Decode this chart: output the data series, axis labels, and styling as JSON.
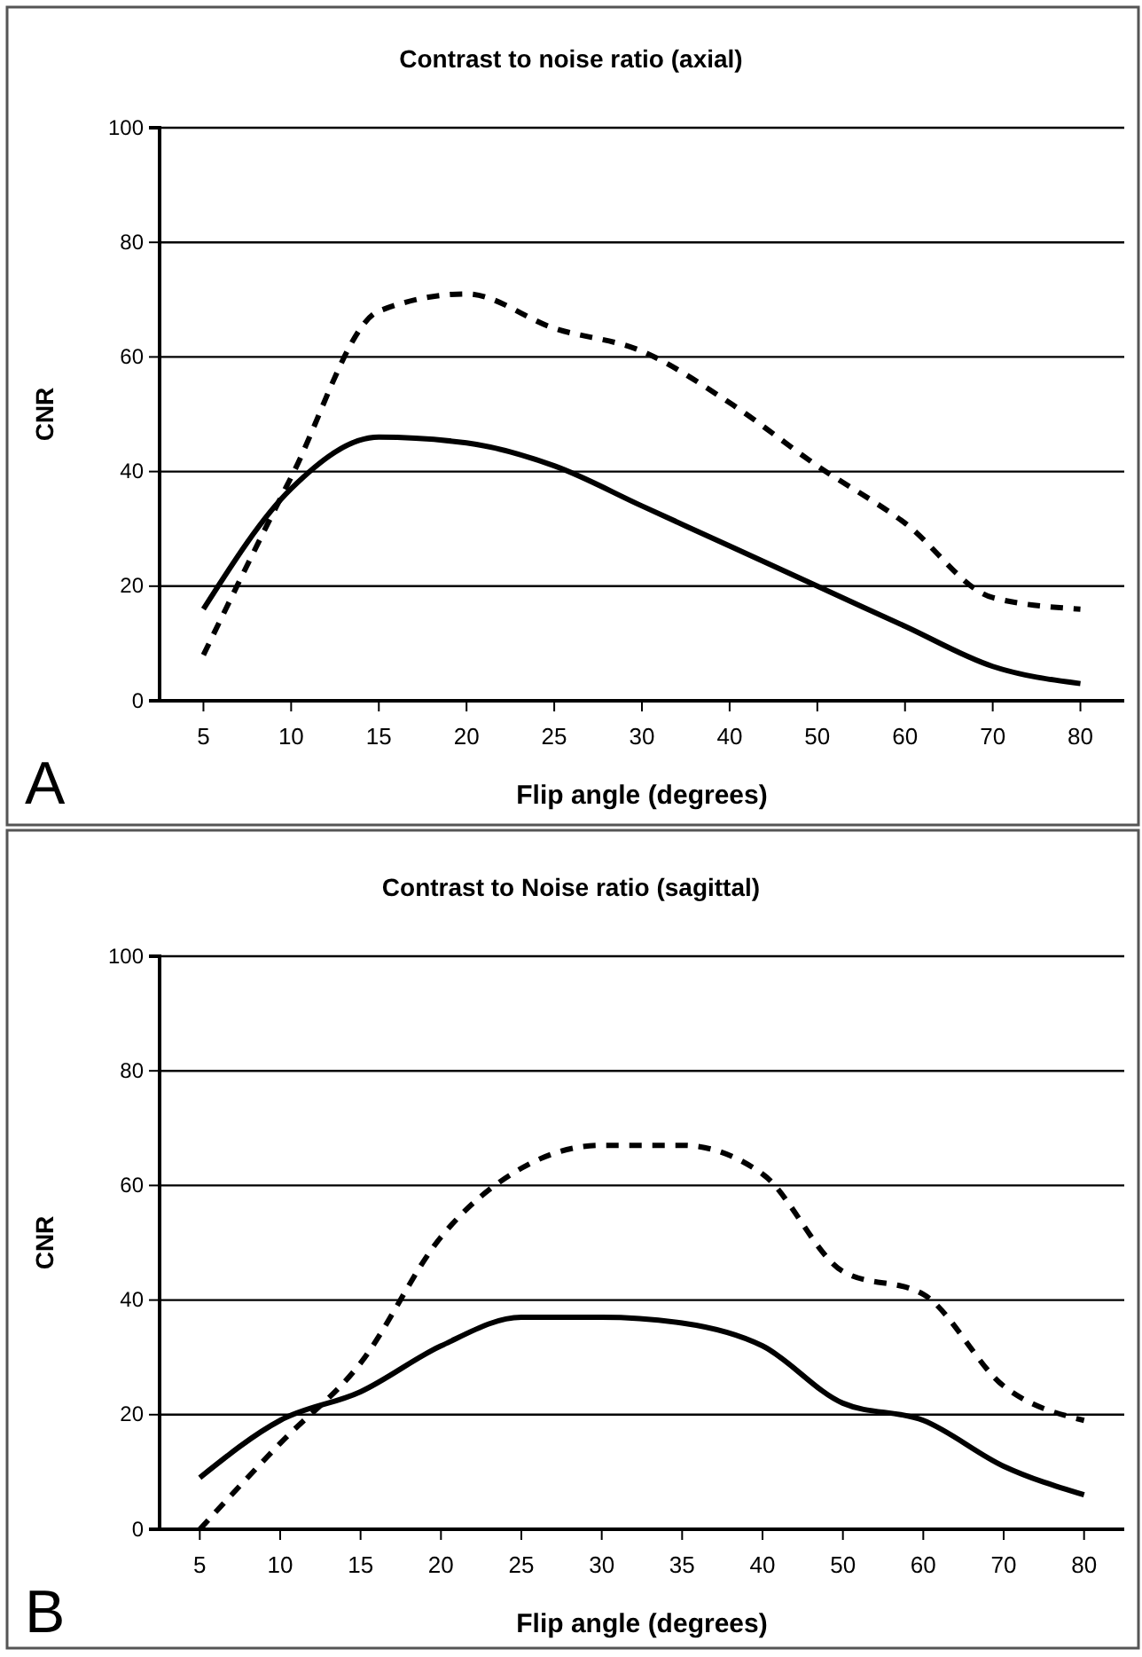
{
  "chart_data": [
    {
      "type": "line",
      "title": "Contrast to noise ratio (axial)",
      "xlabel": "Flip angle (degrees)",
      "ylabel": "CNR",
      "annotations": [
        "A"
      ],
      "categories": [
        "5",
        "10",
        "15",
        "20",
        "25",
        "30",
        "40",
        "50",
        "60",
        "70",
        "80"
      ],
      "series": [
        {
          "color": "#000000",
          "line_style": "solid",
          "values": [
            16,
            37,
            46,
            45,
            41,
            34,
            27,
            20,
            13,
            6,
            3
          ]
        },
        {
          "color": "#000000",
          "line_style": "dashed",
          "values": [
            8,
            39,
            68,
            71,
            65,
            61,
            52,
            41,
            31,
            18,
            16
          ]
        }
      ],
      "ylim": [
        0,
        100
      ],
      "yticks": [
        0,
        20,
        40,
        60,
        80,
        100
      ],
      "grid": "y",
      "marker": "none"
    },
    {
      "type": "line",
      "title": "Contrast to Noise ratio (sagittal)",
      "xlabel": "Flip angle (degrees)",
      "ylabel": "CNR",
      "annotations": [
        "B"
      ],
      "categories": [
        "5",
        "10",
        "15",
        "20",
        "25",
        "30",
        "35",
        "40",
        "50",
        "60",
        "70",
        "80"
      ],
      "series": [
        {
          "color": "#000000",
          "line_style": "solid",
          "values": [
            9,
            19,
            24,
            32,
            37,
            37,
            36,
            32,
            22,
            19,
            11,
            6
          ]
        },
        {
          "color": "#000000",
          "line_style": "dashed",
          "values": [
            0,
            15,
            29,
            51,
            63,
            67,
            67,
            62,
            45,
            41,
            25,
            19
          ]
        }
      ],
      "ylim": [
        0,
        100
      ],
      "yticks": [
        0,
        20,
        40,
        60,
        80,
        100
      ],
      "grid": "y",
      "marker": "none"
    }
  ]
}
